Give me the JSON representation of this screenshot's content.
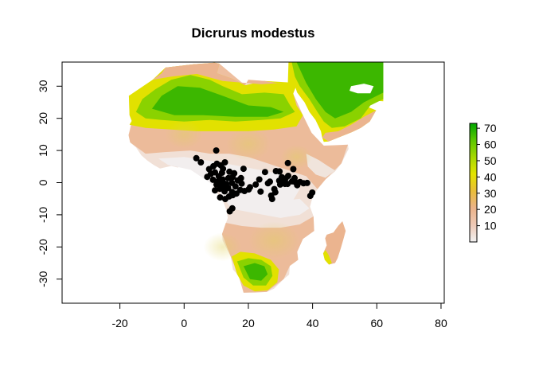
{
  "chart_data": {
    "type": "scatter",
    "title": "Dicrurus modestus",
    "xlim": [
      -38,
      81
    ],
    "ylim": [
      -37.5,
      37.5
    ],
    "x_ticks": [
      -20,
      0,
      20,
      40,
      60,
      80
    ],
    "y_ticks": [
      -30,
      -20,
      -10,
      0,
      10,
      20,
      30
    ],
    "x_tick_labels": [
      "-20",
      "0",
      "20",
      "40",
      "60",
      "80"
    ],
    "y_tick_labels": [
      "-30",
      "-20",
      "-10",
      "0",
      "10",
      "20",
      "30"
    ],
    "legend": {
      "position": "right",
      "range": [
        0,
        73
      ],
      "ticks": [
        10,
        20,
        30,
        40,
        50,
        60,
        70
      ],
      "tick_labels": [
        "10",
        "20",
        "30",
        "40",
        "50",
        "60",
        "70"
      ],
      "colors": [
        "#f2f2f2",
        "#eec9b6",
        "#ebb38a",
        "#e9bd3a",
        "#e4e400",
        "#a6d800",
        "#5bc700",
        "#00a600"
      ]
    },
    "point_color": "#000000",
    "points": [
      [
        10.0,
        10.0
      ],
      [
        3.8,
        7.6
      ],
      [
        5.2,
        6.3
      ],
      [
        7.8,
        4.2
      ],
      [
        9.1,
        5.1
      ],
      [
        10.2,
        5.9
      ],
      [
        11.4,
        5.4
      ],
      [
        12.7,
        6.3
      ],
      [
        12.1,
        4.3
      ],
      [
        9.6,
        3.2
      ],
      [
        8.3,
        2.7
      ],
      [
        10.8,
        2.0
      ],
      [
        7.2,
        1.8
      ],
      [
        9.0,
        0.9
      ],
      [
        10.5,
        0.3
      ],
      [
        12.0,
        1.0
      ],
      [
        13.8,
        1.4
      ],
      [
        15.1,
        1.7
      ],
      [
        11.7,
        -0.5
      ],
      [
        13.1,
        -0.4
      ],
      [
        14.9,
        -0.1
      ],
      [
        16.7,
        0.7
      ],
      [
        17.7,
        1.4
      ],
      [
        18.5,
        4.3
      ],
      [
        15.6,
        2.9
      ],
      [
        14.1,
        3.4
      ],
      [
        16.0,
        -1.2
      ],
      [
        9.6,
        -2.4
      ],
      [
        11.1,
        -1.9
      ],
      [
        12.6,
        -2.7
      ],
      [
        13.7,
        -1.6
      ],
      [
        14.9,
        -2.9
      ],
      [
        16.3,
        -3.4
      ],
      [
        17.5,
        -2.3
      ],
      [
        18.8,
        -2.6
      ],
      [
        20.1,
        -2.1
      ],
      [
        20.5,
        -1.4
      ],
      [
        17.9,
        -0.3
      ],
      [
        11.2,
        -4.6
      ],
      [
        12.8,
        -5.1
      ],
      [
        14.0,
        -4.3
      ],
      [
        15.1,
        -3.9
      ],
      [
        14.2,
        -8.9
      ],
      [
        15.0,
        -8.0
      ],
      [
        22.3,
        -0.6
      ],
      [
        23.4,
        1.0
      ],
      [
        23.8,
        -2.8
      ],
      [
        25.2,
        3.3
      ],
      [
        26.1,
        -0.2
      ],
      [
        27.1,
        -4.0
      ],
      [
        27.4,
        -5.1
      ],
      [
        28.1,
        -2.0
      ],
      [
        28.4,
        -3.0
      ],
      [
        28.6,
        3.6
      ],
      [
        29.7,
        3.5
      ],
      [
        29.6,
        0.6
      ],
      [
        29.9,
        -0.6
      ],
      [
        30.4,
        1.7
      ],
      [
        30.9,
        0.8
      ],
      [
        31.6,
        1.3
      ],
      [
        31.4,
        -0.4
      ],
      [
        32.2,
        -0.4
      ],
      [
        32.4,
        2.1
      ],
      [
        32.3,
        6.1
      ],
      [
        33.6,
        0.4
      ],
      [
        34.4,
        1.4
      ],
      [
        34.6,
        0.2
      ],
      [
        34.0,
        4.2
      ],
      [
        35.2,
        -0.8
      ],
      [
        36.1,
        0.2
      ],
      [
        37.2,
        -0.2
      ],
      [
        38.3,
        -0.1
      ],
      [
        39.3,
        -4.1
      ],
      [
        39.9,
        -3.1
      ],
      [
        26.7,
        0.3
      ],
      [
        10.1,
        -0.6
      ],
      [
        11.8,
        3.1
      ],
      [
        12.4,
        -1.2
      ]
    ]
  }
}
